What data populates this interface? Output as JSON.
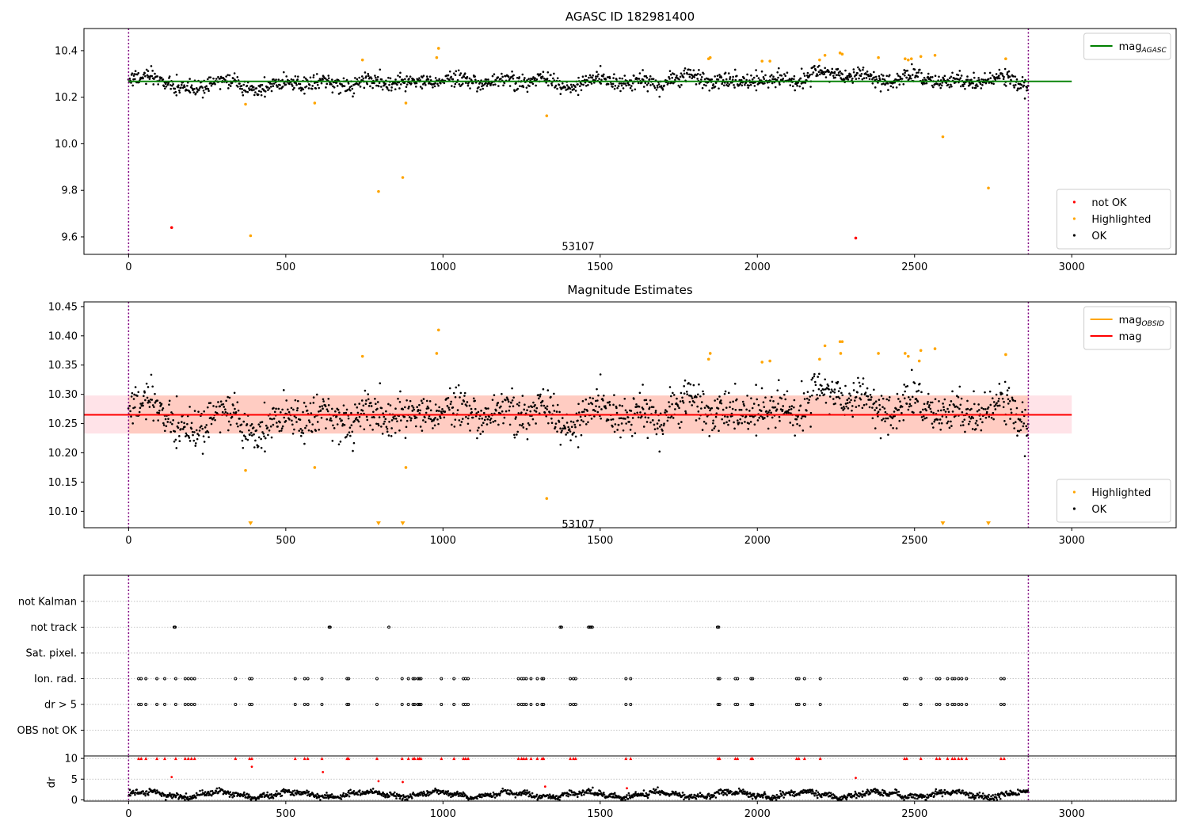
{
  "chart_data": [
    {
      "type": "scatter",
      "title": "AGASC ID 182981400",
      "xlim": [
        -142,
        3332
      ],
      "ylim": [
        9.525,
        10.495
      ],
      "xticks": [
        0,
        500,
        1000,
        1500,
        2000,
        2500,
        3000
      ],
      "yticks": [
        9.6,
        9.8,
        10.0,
        10.2,
        10.4
      ],
      "ytick_decimals": 1,
      "annotation": {
        "text": "53107",
        "x": 1430,
        "y": 9.55
      },
      "obs_bounds": [
        0,
        2862
      ],
      "colors": {
        "ok": "#000000",
        "highlighted": "#ffa500",
        "not_ok": "#ff0000",
        "mag_agasc": "#008000",
        "obs_bound": "#800080"
      },
      "lines": [
        {
          "name": "mag",
          "name_sub": "AGASC",
          "y": 10.268,
          "x": [
            0,
            3000
          ],
          "color": "#008000"
        }
      ],
      "ok_points": {
        "x_start": 0,
        "x_end": 2862,
        "count": 1550,
        "baseline": 10.268,
        "trend": [
          [
            0,
            0.01
          ],
          [
            60,
            0.015
          ],
          [
            100,
            0.02
          ],
          [
            150,
            -0.03
          ],
          [
            200,
            -0.04
          ],
          [
            250,
            -0.01
          ],
          [
            300,
            0.01
          ],
          [
            360,
            -0.02
          ],
          [
            420,
            -0.03
          ],
          [
            500,
            -0.005
          ],
          [
            600,
            -0.005
          ],
          [
            700,
            -0.01
          ],
          [
            800,
            0.0
          ],
          [
            900,
            -0.01
          ],
          [
            1000,
            0.01
          ],
          [
            1100,
            0.0
          ],
          [
            1200,
            -0.005
          ],
          [
            1300,
            0.01
          ],
          [
            1400,
            -0.02
          ],
          [
            1500,
            0.005
          ],
          [
            1600,
            -0.005
          ],
          [
            1700,
            -0.005
          ],
          [
            1800,
            0.02
          ],
          [
            1900,
            -0.005
          ],
          [
            2000,
            0.0
          ],
          [
            2100,
            0.005
          ],
          [
            2200,
            0.03
          ],
          [
            2300,
            0.03
          ],
          [
            2400,
            0.005
          ],
          [
            2500,
            0.02
          ],
          [
            2600,
            0.0
          ],
          [
            2700,
            0.005
          ],
          [
            2800,
            0.01
          ],
          [
            2862,
            -0.02
          ]
        ],
        "spread": 0.028
      },
      "highlighted": [
        [
          372,
          10.17
        ],
        [
          388,
          9.605
        ],
        [
          592,
          10.175
        ],
        [
          744,
          10.36
        ],
        [
          795,
          9.795
        ],
        [
          872,
          9.855
        ],
        [
          882,
          10.175
        ],
        [
          980,
          10.37
        ],
        [
          986,
          10.41
        ],
        [
          1330,
          10.12
        ],
        [
          1845,
          10.365
        ],
        [
          1850,
          10.37
        ],
        [
          2015,
          10.355
        ],
        [
          2040,
          10.355
        ],
        [
          2198,
          10.36
        ],
        [
          2215,
          10.38
        ],
        [
          2263,
          10.39
        ],
        [
          2270,
          10.385
        ],
        [
          2385,
          10.37
        ],
        [
          2470,
          10.365
        ],
        [
          2480,
          10.36
        ],
        [
          2490,
          10.365
        ],
        [
          2520,
          10.375
        ],
        [
          2565,
          10.38
        ],
        [
          2590,
          10.03
        ],
        [
          2735,
          9.81
        ],
        [
          2790,
          10.365
        ]
      ],
      "not_ok": [
        [
          137,
          9.64
        ],
        [
          2313,
          9.595
        ]
      ],
      "legends": [
        {
          "loc": "upper right",
          "entries": [
            {
              "label": "mag",
              "sub": "AGASC",
              "kind": "line",
              "color": "#008000"
            }
          ]
        },
        {
          "loc": "lower right",
          "entries": [
            {
              "label": "not OK",
              "kind": "dot",
              "color": "#ff0000"
            },
            {
              "label": "Highlighted",
              "kind": "dot",
              "color": "#ffa500"
            },
            {
              "label": "OK",
              "kind": "dot",
              "color": "#000000"
            }
          ]
        }
      ]
    },
    {
      "type": "scatter",
      "title": "Magnitude Estimates",
      "xlim": [
        -142,
        3332
      ],
      "ylim": [
        10.072,
        10.458
      ],
      "xticks": [
        0,
        500,
        1000,
        1500,
        2000,
        2500,
        3000
      ],
      "yticks": [
        10.1,
        10.15,
        10.2,
        10.25,
        10.3,
        10.35,
        10.4,
        10.45
      ],
      "ytick_decimals": 2,
      "annotation": {
        "text": "53107",
        "x": 1430,
        "y": 10.08
      },
      "obs_bounds": [
        0,
        2862
      ],
      "bands": [
        {
          "name": "mag range",
          "x": [
            -142,
            3000
          ],
          "y": [
            10.233,
            10.298
          ],
          "color": "#ffc0cb",
          "opacity": 0.45
        },
        {
          "name": "mag_obsid range",
          "x": [
            0,
            2862
          ],
          "y": [
            10.233,
            10.298
          ],
          "color": "#ffa07a",
          "opacity": 0.35
        }
      ],
      "lines": [
        {
          "name": "mag",
          "name_sub": "OBSID",
          "y": 10.265,
          "x": [
            0,
            2862
          ],
          "color": "#ffa500"
        },
        {
          "name": "mag",
          "y": 10.265,
          "x": [
            -142,
            3000
          ],
          "color": "#ff0000"
        }
      ],
      "ok_points": "same as panel 1",
      "highlighted": [
        [
          372,
          10.17
        ],
        [
          592,
          10.175
        ],
        [
          744,
          10.365
        ],
        [
          882,
          10.175
        ],
        [
          980,
          10.37
        ],
        [
          986,
          10.41
        ],
        [
          1330,
          10.122
        ],
        [
          1845,
          10.36
        ],
        [
          1850,
          10.37
        ],
        [
          2015,
          10.355
        ],
        [
          2040,
          10.357
        ],
        [
          2198,
          10.36
        ],
        [
          2215,
          10.383
        ],
        [
          2263,
          10.39
        ],
        [
          2270,
          10.39
        ],
        [
          2265,
          10.37
        ],
        [
          2385,
          10.37
        ],
        [
          2470,
          10.37
        ],
        [
          2480,
          10.365
        ],
        [
          2520,
          10.375
        ],
        [
          2515,
          10.357
        ],
        [
          2565,
          10.378
        ],
        [
          2790,
          10.368
        ]
      ],
      "highlighted_below_range": [
        388,
        795,
        872,
        2590,
        2735
      ],
      "legends": [
        {
          "loc": "upper right",
          "entries": [
            {
              "label": "mag",
              "sub": "OBSID",
              "kind": "line",
              "color": "#ffa500"
            },
            {
              "label": "mag",
              "kind": "line",
              "color": "#ff0000"
            }
          ]
        },
        {
          "loc": "lower right",
          "entries": [
            {
              "label": "Highlighted",
              "kind": "dot",
              "color": "#ffa500"
            },
            {
              "label": "OK",
              "kind": "dot",
              "color": "#000000"
            }
          ]
        }
      ]
    },
    {
      "type": "scatter",
      "xlim": [
        -142,
        3332
      ],
      "xticks": [
        0,
        500,
        1000,
        1500,
        2000,
        2500,
        3000
      ],
      "obs_bounds": [
        0,
        2862
      ],
      "categories": [
        "not Kalman",
        "not track",
        "Sat. pixel.",
        "Ion. rad.",
        "dr > 5",
        "OBS not OK"
      ],
      "flags": {
        "not Kalman": [],
        "not track": [
          145,
          148,
          638,
          641,
          828,
          1373,
          1377,
          1463,
          1467,
          1471,
          1475,
          1873,
          1877
        ],
        "Sat. pixel.": [],
        "Ion. rad.": [
          32,
          40,
          55,
          90,
          115,
          150,
          180,
          190,
          200,
          210,
          340,
          385,
          392,
          530,
          560,
          570,
          615,
          695,
          700,
          790,
          870,
          890,
          905,
          910,
          920,
          925,
          930,
          995,
          1035,
          1065,
          1072,
          1080,
          1240,
          1250,
          1257,
          1265,
          1280,
          1300,
          1315,
          1320,
          1405,
          1415,
          1422,
          1582,
          1597,
          1875,
          1880,
          1930,
          1937,
          1980,
          1985,
          2125,
          2132,
          2150,
          2200,
          2468,
          2475,
          2520,
          2570,
          2580,
          2605,
          2620,
          2628,
          2640,
          2650,
          2665,
          2775,
          2785
        ],
        "dr > 5": [
          32,
          40,
          55,
          90,
          115,
          150,
          180,
          190,
          200,
          210,
          340,
          385,
          392,
          530,
          560,
          570,
          615,
          695,
          700,
          790,
          870,
          890,
          905,
          910,
          920,
          925,
          930,
          995,
          1035,
          1065,
          1072,
          1080,
          1240,
          1250,
          1257,
          1265,
          1280,
          1300,
          1315,
          1320,
          1405,
          1415,
          1422,
          1582,
          1597,
          1875,
          1880,
          1930,
          1937,
          1980,
          1985,
          2125,
          2132,
          2150,
          2200,
          2468,
          2475,
          2520,
          2570,
          2580,
          2605,
          2620,
          2628,
          2640,
          2650,
          2665,
          2775,
          2785
        ],
        "OBS not OK": []
      }
    },
    {
      "type": "scatter",
      "ylabel": "dr",
      "xlim": [
        -142,
        3332
      ],
      "ylim": [
        -0.3,
        10.6
      ],
      "xticks": [
        0,
        500,
        1000,
        1500,
        2000,
        2500,
        3000
      ],
      "yticks": [
        0,
        5,
        10
      ],
      "obs_bounds": [
        0,
        2862
      ],
      "clipped_marker_value": 10,
      "clipped_x": [
        32,
        40,
        55,
        90,
        115,
        150,
        180,
        190,
        200,
        210,
        340,
        385,
        392,
        530,
        560,
        570,
        615,
        695,
        700,
        790,
        870,
        890,
        905,
        910,
        920,
        925,
        930,
        995,
        1035,
        1065,
        1072,
        1080,
        1240,
        1250,
        1257,
        1265,
        1280,
        1300,
        1315,
        1320,
        1405,
        1415,
        1422,
        1582,
        1597,
        1875,
        1880,
        1930,
        1937,
        1980,
        1985,
        2125,
        2132,
        2150,
        2200,
        2468,
        2475,
        2520,
        2570,
        2580,
        2605,
        2620,
        2628,
        2640,
        2650,
        2665,
        2775,
        2785
      ],
      "red_points": [
        [
          137,
          5.5
        ],
        [
          392,
          8.0
        ],
        [
          618,
          6.7
        ],
        [
          795,
          4.5
        ],
        [
          872,
          4.3
        ],
        [
          1325,
          3.2
        ],
        [
          1585,
          2.8
        ],
        [
          2313,
          5.3
        ]
      ],
      "ok_dr": {
        "x_start": 0,
        "x_end": 2862,
        "count": 1550,
        "base": 1.3,
        "amplitude": 0.6,
        "noise": 0.35
      }
    }
  ]
}
